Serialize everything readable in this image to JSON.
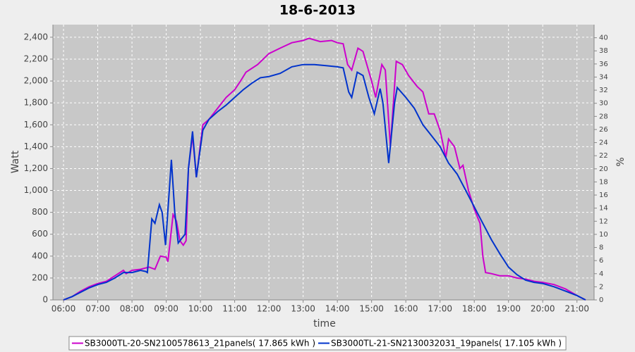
{
  "chart_data": {
    "type": "line",
    "title": "18-6-2013",
    "xlabel": "time",
    "ylabel": "Watt",
    "y2label": "%",
    "xlim": [
      5.69,
      21.5
    ],
    "ylim": [
      0,
      2515
    ],
    "y2lim": [
      0,
      42
    ],
    "grid": true,
    "legend": "bottom",
    "xticks": [
      {
        "value": 6,
        "label": "06:00"
      },
      {
        "value": 7,
        "label": "07:00"
      },
      {
        "value": 8,
        "label": "08:00"
      },
      {
        "value": 9,
        "label": "09:00"
      },
      {
        "value": 10,
        "label": "10:00"
      },
      {
        "value": 11,
        "label": "11:00"
      },
      {
        "value": 12,
        "label": "12:00"
      },
      {
        "value": 13,
        "label": "13:00"
      },
      {
        "value": 14,
        "label": "14:00"
      },
      {
        "value": 15,
        "label": "15:00"
      },
      {
        "value": 16,
        "label": "16:00"
      },
      {
        "value": 17,
        "label": "17:00"
      },
      {
        "value": 18,
        "label": "18:00"
      },
      {
        "value": 19,
        "label": "19:00"
      },
      {
        "value": 20,
        "label": "20:00"
      },
      {
        "value": 21,
        "label": "21:00"
      }
    ],
    "yticks": [
      0,
      200,
      400,
      600,
      800,
      {
        "value": 1000,
        "label": "1,000"
      },
      {
        "value": 1200,
        "label": "1,200"
      },
      {
        "value": 1400,
        "label": "1,400"
      },
      {
        "value": 1600,
        "label": "1,600"
      },
      {
        "value": 1800,
        "label": "1,800"
      },
      {
        "value": 2000,
        "label": "2,000"
      },
      {
        "value": 2200,
        "label": "2,200"
      },
      {
        "value": 2400,
        "label": "2,400"
      }
    ],
    "y2ticks": [
      0,
      2,
      4,
      6,
      8,
      10,
      12,
      14,
      16,
      18,
      20,
      22,
      24,
      26,
      28,
      30,
      32,
      34,
      36,
      38,
      40
    ],
    "series": [
      {
        "name": "SB3000TL-20-SN2100578613_21panels( 17.865 kWh )",
        "color": "#cc00cc",
        "x": [
          6,
          6.25,
          6.5,
          6.75,
          7,
          7.25,
          7.5,
          7.75,
          7.83,
          8,
          8.25,
          8.5,
          8.67,
          8.83,
          9,
          9.05,
          9.2,
          9.3,
          9.4,
          9.5,
          9.58,
          9.65,
          9.77,
          9.88,
          10.07,
          10.25,
          10.5,
          10.75,
          11,
          11.17,
          11.33,
          11.67,
          12,
          12.33,
          12.67,
          13,
          13.17,
          13.5,
          13.83,
          14,
          14.17,
          14.3,
          14.42,
          14.6,
          14.75,
          15,
          15.12,
          15.3,
          15.4,
          15.55,
          15.72,
          15.9,
          16.08,
          16.33,
          16.5,
          16.67,
          16.83,
          17,
          17.17,
          17.25,
          17.42,
          17.58,
          17.67,
          17.83,
          18,
          18.17,
          18.25,
          18.33,
          18.5,
          18.75,
          19,
          19.25,
          19.5,
          19.75,
          20,
          20.33,
          20.67,
          21,
          21.25
        ],
        "values": [
          0,
          30,
          80,
          120,
          150,
          170,
          220,
          270,
          240,
          270,
          280,
          300,
          280,
          400,
          390,
          350,
          780,
          720,
          540,
          500,
          540,
          1200,
          1500,
          1120,
          1600,
          1650,
          1750,
          1850,
          1920,
          2000,
          2080,
          2150,
          2250,
          2300,
          2350,
          2370,
          2390,
          2360,
          2370,
          2350,
          2340,
          2150,
          2100,
          2300,
          2270,
          2000,
          1850,
          2150,
          2100,
          1400,
          2180,
          2150,
          2050,
          1950,
          1900,
          1700,
          1700,
          1550,
          1300,
          1470,
          1400,
          1200,
          1230,
          1000,
          830,
          700,
          400,
          250,
          240,
          220,
          220,
          200,
          190,
          170,
          160,
          140,
          100,
          40,
          0
        ]
      },
      {
        "name": "SB3000TL-21-SN2130032031_19panels( 17.105 kWh )",
        "color": "#0033cc",
        "x": [
          6,
          6.25,
          6.5,
          6.75,
          7,
          7.25,
          7.5,
          7.75,
          8,
          8.25,
          8.4,
          8.45,
          8.58,
          8.67,
          8.8,
          8.88,
          8.98,
          9.15,
          9.25,
          9.35,
          9.45,
          9.55,
          9.65,
          9.77,
          9.88,
          10.07,
          10.25,
          10.5,
          10.75,
          11,
          11.25,
          11.5,
          11.75,
          12,
          12.33,
          12.67,
          13,
          13.33,
          13.67,
          14,
          14.17,
          14.33,
          14.42,
          14.58,
          14.75,
          14.92,
          15.08,
          15.25,
          15.33,
          15.5,
          15.67,
          15.75,
          16,
          16.25,
          16.5,
          16.75,
          17,
          17.25,
          17.5,
          17.75,
          18,
          18.25,
          18.5,
          18.75,
          19,
          19.25,
          19.5,
          19.75,
          20,
          20.33,
          20.67,
          21,
          21.25
        ],
        "values": [
          0,
          30,
          70,
          110,
          140,
          160,
          200,
          250,
          250,
          270,
          260,
          250,
          740,
          700,
          870,
          800,
          500,
          1280,
          800,
          520,
          560,
          600,
          1200,
          1540,
          1120,
          1550,
          1650,
          1720,
          1780,
          1850,
          1920,
          1980,
          2030,
          2040,
          2070,
          2130,
          2150,
          2150,
          2140,
          2130,
          2120,
          1900,
          1850,
          2080,
          2050,
          1850,
          1700,
          1930,
          1800,
          1250,
          1800,
          1940,
          1850,
          1750,
          1600,
          1500,
          1400,
          1250,
          1150,
          1000,
          850,
          700,
          550,
          420,
          300,
          230,
          180,
          160,
          150,
          120,
          80,
          40,
          0
        ]
      }
    ]
  }
}
